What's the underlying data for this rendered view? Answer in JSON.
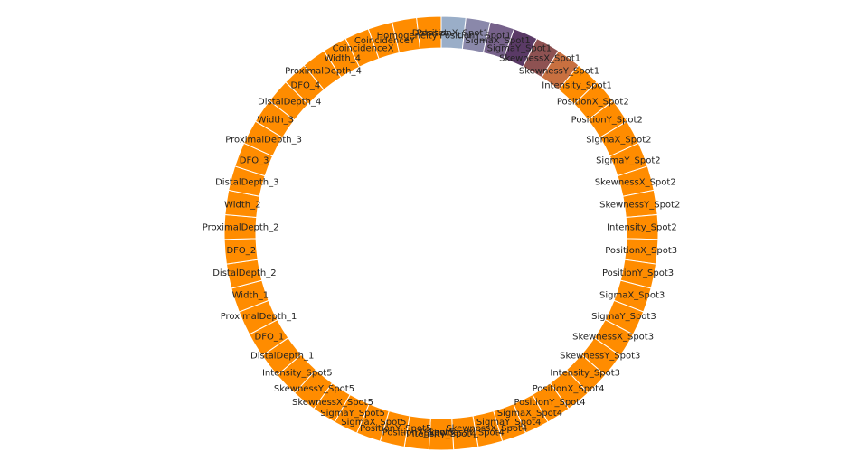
{
  "chart_data": {
    "type": "donut",
    "categories": [
      "PositionX_Spot1",
      "PositionY_Spot1",
      "SigmaX_Spot1",
      "SigmaY_Spot1",
      "SkewnessX_Spot1",
      "SkewnessY_Spot1",
      "Intensity_Spot1",
      "PositionX_Spot2",
      "PositionY_Spot2",
      "SigmaX_Spot2",
      "SigmaY_Spot2",
      "SkewnessX_Spot2",
      "SkewnessY_Spot2",
      "Intensity_Spot2",
      "PositionX_Spot3",
      "PositionY_Spot3",
      "SigmaX_Spot3",
      "SigmaY_Spot3",
      "SkewnessX_Spot3",
      "SkewnessY_Spot3",
      "Intensity_Spot3",
      "PositionX_Spot4",
      "PositionY_Spot4",
      "SigmaX_Spot4",
      "SigmaY_Spot4",
      "SkewnessX_Spot4",
      "SkewnessY_Spot4",
      "Intensity_Spot4",
      "PositionX_Spot5",
      "PositionY_Spot5",
      "SigmaX_Spot5",
      "SigmaY_Spot5",
      "SkewnessX_Spot5",
      "SkewnessY_Spot5",
      "Intensity_Spot5",
      "DistalDepth_1",
      "DFO_1",
      "ProximalDepth_1",
      "Width_1",
      "DistalDepth_2",
      "DFO_2",
      "ProximalDepth_2",
      "Width_2",
      "DistalDepth_3",
      "DFO_3",
      "ProximalDepth_3",
      "Width_3",
      "DistalDepth_4",
      "DFO_4",
      "ProximalDepth_4",
      "Width_4",
      "CoincidenceX",
      "CoincidenceY",
      "Homogeneity",
      "Dataset"
    ],
    "values": [
      1,
      1,
      1,
      1,
      1,
      1,
      1,
      1,
      1,
      1,
      1,
      1,
      1,
      1,
      1,
      1,
      1,
      1,
      1,
      1,
      1,
      1,
      1,
      1,
      1,
      1,
      1,
      1,
      1,
      1,
      1,
      1,
      1,
      1,
      1,
      1,
      1,
      1,
      1,
      1,
      1,
      1,
      1,
      1,
      1,
      1,
      1,
      1,
      1,
      1,
      1,
      1,
      1,
      1,
      1
    ],
    "colors": [
      "#9aaec8",
      "#8a88aa",
      "#76618a",
      "#5a3a66",
      "#8e5252",
      "#c87040",
      "#ff8c00",
      "#ff8c00",
      "#ff8c00",
      "#ff8c00",
      "#ff8c00",
      "#ff8c00",
      "#ff8c00",
      "#ff8c00",
      "#ff8c00",
      "#ff8c00",
      "#ff8c00",
      "#ff8c00",
      "#ff8c00",
      "#ff8c00",
      "#ff8c00",
      "#ff8c00",
      "#ff8c00",
      "#ff8c00",
      "#ff8c00",
      "#ff8c00",
      "#ff8c00",
      "#ff8c00",
      "#ff8c00",
      "#ff8c00",
      "#ff8c00",
      "#ff8c00",
      "#ff8c00",
      "#ff8c00",
      "#ff8c00",
      "#ff8c00",
      "#ff8c00",
      "#ff8c00",
      "#ff8c00",
      "#ff8c00",
      "#ff8c00",
      "#ff8c00",
      "#ff8c00",
      "#ff8c00",
      "#ff8c00",
      "#ff8c00",
      "#ff8c00",
      "#ff8c00",
      "#ff8c00",
      "#ff8c00",
      "#ff8c00",
      "#ff8c00",
      "#ff8c00",
      "#ff8c00",
      "#ff8c00"
    ]
  }
}
